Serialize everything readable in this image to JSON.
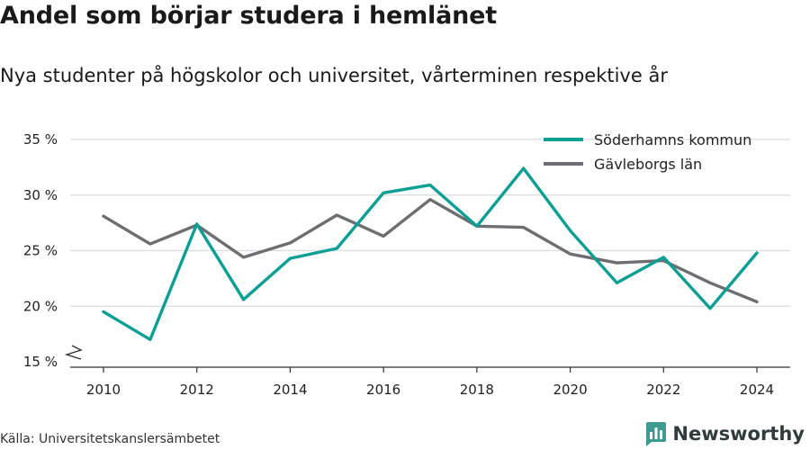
{
  "header": {
    "title": "Andel som börjar studera i hemlänet",
    "subtitle": "Nya studenter på högskolor och universitet, vårterminen respektive år"
  },
  "footer": {
    "source": "Källa: Universitetskanslersämbetet",
    "brand": "Newsworthy"
  },
  "icons": {
    "brand_logo": "newsworthy-logo-icon",
    "axis_break": "axis-break-icon"
  },
  "chart_data": {
    "type": "line",
    "title": "Andel som börjar studera i hemlänet",
    "subtitle": "Nya studenter på högskolor och universitet, vårterminen respektive år",
    "x": [
      2010,
      2011,
      2012,
      2013,
      2014,
      2015,
      2016,
      2017,
      2018,
      2019,
      2020,
      2021,
      2022,
      2023,
      2024
    ],
    "x_ticks": [
      2010,
      2012,
      2014,
      2016,
      2018,
      2020,
      2022,
      2024
    ],
    "x_tick_labels": [
      "2010",
      "2012",
      "2014",
      "2016",
      "2018",
      "2020",
      "2022",
      "2024"
    ],
    "y_ticks": [
      15,
      20,
      25,
      30,
      35
    ],
    "y_tick_labels": [
      "15 %",
      "20 %",
      "25 %",
      "30 %",
      "35 %"
    ],
    "ylim": [
      15,
      35
    ],
    "xlim": [
      2009.25,
      2024.75
    ],
    "grid": true,
    "legend_position": "top-right",
    "series": [
      {
        "name": "Söderhamns kommun",
        "color": "#0a9f94",
        "values": [
          19.5,
          17.0,
          27.4,
          20.6,
          24.3,
          25.2,
          30.2,
          30.9,
          27.2,
          32.4,
          26.8,
          22.1,
          24.4,
          19.8,
          24.8
        ]
      },
      {
        "name": "Gävleborgs län",
        "color": "#6f6d72",
        "values": [
          28.1,
          25.6,
          27.3,
          24.4,
          25.7,
          28.2,
          26.3,
          29.6,
          27.2,
          27.1,
          24.7,
          23.9,
          24.1,
          22.1,
          20.4
        ]
      }
    ]
  }
}
